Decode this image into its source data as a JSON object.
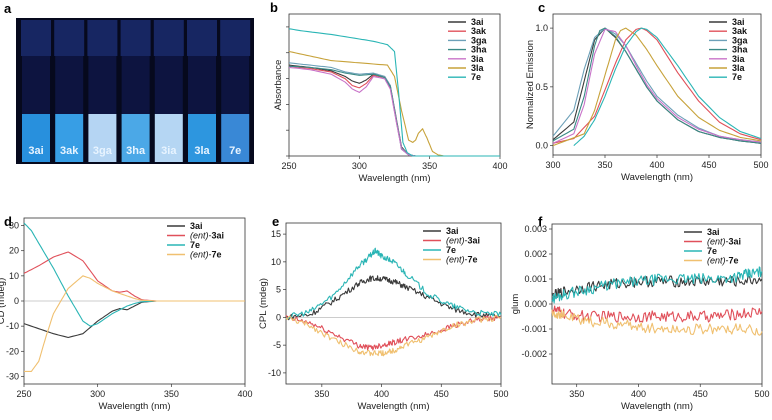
{
  "photo": {
    "panel": "a",
    "vials": [
      "3ai",
      "3ak",
      "3ga",
      "3ha",
      "3ia",
      "3la",
      "7e"
    ]
  },
  "chart_data": [
    {
      "panel": "b",
      "type": "line",
      "xlabel": "Wavelength (nm)",
      "ylabel": "Absorbance",
      "xlim": [
        250,
        400
      ],
      "ylim": [
        0,
        1.25
      ],
      "xticks": [
        "250",
        "300",
        "350",
        "400"
      ],
      "series": [
        {
          "name": "3ai",
          "color": "#3a3a3a",
          "x": [
            250,
            265,
            280,
            290,
            295,
            300,
            305,
            310,
            318,
            322,
            326,
            330,
            335,
            340,
            350,
            360,
            400
          ],
          "y": [
            0.8,
            0.78,
            0.75,
            0.7,
            0.66,
            0.64,
            0.67,
            0.72,
            0.7,
            0.62,
            0.35,
            0.08,
            0.01,
            0.0,
            0.0,
            0.0,
            0.0
          ]
        },
        {
          "name": "3ak",
          "color": "#e0505a",
          "x": [
            250,
            265,
            280,
            290,
            295,
            300,
            305,
            310,
            318,
            322,
            326,
            330,
            335,
            340,
            350,
            360,
            400
          ],
          "y": [
            0.79,
            0.77,
            0.74,
            0.68,
            0.62,
            0.6,
            0.64,
            0.71,
            0.69,
            0.6,
            0.33,
            0.07,
            0.01,
            0.0,
            0.0,
            0.0,
            0.0
          ]
        },
        {
          "name": "3ga",
          "color": "#6ca0b8",
          "x": [
            250,
            265,
            280,
            290,
            300,
            310,
            318,
            322,
            326,
            330,
            335,
            340,
            350,
            360,
            400
          ],
          "y": [
            0.82,
            0.8,
            0.78,
            0.74,
            0.72,
            0.73,
            0.7,
            0.62,
            0.34,
            0.07,
            0.01,
            0.0,
            0.0,
            0.0,
            0.0
          ]
        },
        {
          "name": "3ha",
          "color": "#3a8a86",
          "x": [
            250,
            265,
            280,
            290,
            300,
            310,
            318,
            322,
            326,
            330,
            335,
            340,
            350,
            360,
            400
          ],
          "y": [
            0.79,
            0.78,
            0.76,
            0.73,
            0.71,
            0.72,
            0.69,
            0.61,
            0.33,
            0.06,
            0.01,
            0.0,
            0.0,
            0.0,
            0.0
          ]
        },
        {
          "name": "3ia",
          "color": "#c873c8",
          "x": [
            250,
            265,
            280,
            290,
            295,
            300,
            305,
            310,
            318,
            322,
            326,
            330,
            335,
            340,
            350,
            360,
            400
          ],
          "y": [
            0.78,
            0.76,
            0.72,
            0.65,
            0.59,
            0.56,
            0.61,
            0.7,
            0.68,
            0.59,
            0.32,
            0.06,
            0.01,
            0.0,
            0.0,
            0.0,
            0.0
          ]
        },
        {
          "name": "3la",
          "color": "#c7a23a",
          "x": [
            250,
            265,
            280,
            300,
            320,
            325,
            330,
            335,
            338,
            340,
            342,
            345,
            348,
            352,
            356,
            360,
            400
          ],
          "y": [
            0.92,
            0.88,
            0.84,
            0.82,
            0.8,
            0.7,
            0.4,
            0.14,
            0.12,
            0.14,
            0.2,
            0.24,
            0.16,
            0.04,
            0.01,
            0.0,
            0.0
          ]
        },
        {
          "name": "7e",
          "color": "#2ab5b5",
          "x": [
            250,
            260,
            280,
            300,
            310,
            320,
            325,
            328,
            331,
            334,
            338,
            345,
            360,
            400
          ],
          "y": [
            1.12,
            1.1,
            1.07,
            1.03,
            1.01,
            0.98,
            0.92,
            0.55,
            0.12,
            0.03,
            0.0,
            0.0,
            0.0,
            0.0
          ]
        }
      ]
    },
    {
      "panel": "c",
      "type": "line",
      "xlabel": "Wavelength (nm)",
      "ylabel": "Normalized Emission",
      "xlim": [
        300,
        500
      ],
      "ylim": [
        -0.08,
        1.12
      ],
      "xticks": [
        "300",
        "350",
        "400",
        "450",
        "500"
      ],
      "yticks": [
        "0.0",
        "0.5",
        "1.0"
      ],
      "ytick_values": [
        0,
        0.5,
        1.0
      ],
      "series": [
        {
          "name": "3ai",
          "color": "#3a3a3a",
          "x": [
            300,
            320,
            330,
            340,
            350,
            360,
            370,
            380,
            390,
            400,
            420,
            440,
            460,
            480,
            500
          ],
          "y": [
            0.05,
            0.2,
            0.55,
            0.9,
            1.0,
            0.92,
            0.8,
            0.65,
            0.5,
            0.38,
            0.22,
            0.12,
            0.07,
            0.04,
            0.02
          ]
        },
        {
          "name": "3ak",
          "color": "#e0505a",
          "x": [
            300,
            320,
            340,
            360,
            370,
            380,
            385,
            390,
            400,
            420,
            440,
            460,
            480,
            500
          ],
          "y": [
            0.02,
            0.06,
            0.25,
            0.7,
            0.9,
            0.99,
            1.0,
            0.98,
            0.9,
            0.62,
            0.38,
            0.2,
            0.1,
            0.05
          ]
        },
        {
          "name": "3ga",
          "color": "#6ca0b8",
          "x": [
            300,
            320,
            330,
            340,
            350,
            360,
            370,
            380,
            390,
            400,
            420,
            440,
            460,
            480,
            500
          ],
          "y": [
            0.08,
            0.3,
            0.65,
            0.92,
            1.0,
            0.95,
            0.85,
            0.7,
            0.55,
            0.42,
            0.26,
            0.15,
            0.08,
            0.05,
            0.03
          ]
        },
        {
          "name": "3ha",
          "color": "#3a8a86",
          "x": [
            300,
            320,
            330,
            340,
            345,
            350,
            360,
            370,
            380,
            390,
            400,
            420,
            440,
            460,
            480,
            500
          ],
          "y": [
            0.04,
            0.14,
            0.42,
            0.85,
            0.98,
            1.0,
            0.93,
            0.8,
            0.65,
            0.5,
            0.38,
            0.22,
            0.12,
            0.07,
            0.04,
            0.02
          ]
        },
        {
          "name": "3ia",
          "color": "#c873c8",
          "x": [
            300,
            320,
            330,
            340,
            350,
            360,
            370,
            380,
            390,
            400,
            420,
            440,
            460,
            480,
            500
          ],
          "y": [
            0.02,
            0.1,
            0.35,
            0.78,
            0.99,
            0.97,
            0.85,
            0.68,
            0.52,
            0.4,
            0.24,
            0.14,
            0.08,
            0.05,
            0.03
          ]
        },
        {
          "name": "3la",
          "color": "#c7a23a",
          "x": [
            300,
            330,
            340,
            350,
            360,
            365,
            370,
            380,
            390,
            400,
            420,
            440,
            460,
            480,
            500
          ],
          "y": [
            0.0,
            0.1,
            0.3,
            0.6,
            0.9,
            0.98,
            1.0,
            0.94,
            0.82,
            0.68,
            0.42,
            0.24,
            0.13,
            0.07,
            0.04
          ]
        },
        {
          "name": "7e",
          "color": "#2ab5b5",
          "x": [
            320,
            330,
            340,
            350,
            360,
            370,
            380,
            385,
            390,
            400,
            420,
            440,
            460,
            480,
            500
          ],
          "y": [
            0.0,
            0.08,
            0.22,
            0.42,
            0.65,
            0.85,
            0.97,
            1.0,
            0.99,
            0.92,
            0.68,
            0.42,
            0.24,
            0.12,
            0.06
          ]
        }
      ]
    },
    {
      "panel": "d",
      "type": "line",
      "xlabel": "Wavelength (nm)",
      "ylabel": "CD (mdeg)",
      "xlim": [
        250,
        400
      ],
      "ylim": [
        -33,
        33
      ],
      "xticks": [
        "250",
        "300",
        "350",
        "400"
      ],
      "yticks": [
        "-30",
        "-20",
        "-10",
        "0",
        "10",
        "20",
        "30"
      ],
      "ytick_values": [
        -30,
        -20,
        -10,
        0,
        10,
        20,
        30
      ],
      "series": [
        {
          "name": "3ai",
          "color": "#3a3a3a",
          "x": [
            250,
            260,
            270,
            280,
            290,
            300,
            310,
            315,
            320,
            325,
            330,
            340,
            350,
            400
          ],
          "y": [
            -9,
            -11,
            -13,
            -14.5,
            -13,
            -8,
            -4,
            -3,
            -3.5,
            -2,
            -0.5,
            0,
            0,
            0
          ]
        },
        {
          "name": "(ent)-3ai",
          "color": "#e0505a",
          "x": [
            250,
            260,
            270,
            280,
            290,
            300,
            310,
            315,
            320,
            325,
            330,
            340,
            350,
            400
          ],
          "y": [
            11,
            14,
            17.5,
            19.5,
            16,
            8,
            4,
            3.5,
            4,
            2,
            0.5,
            0,
            0,
            0
          ]
        },
        {
          "name": "7e",
          "color": "#2ab5b5",
          "x": [
            250,
            255,
            260,
            270,
            280,
            290,
            295,
            300,
            310,
            320,
            325,
            330,
            340,
            350,
            400
          ],
          "y": [
            31,
            28,
            23,
            13,
            2,
            -8,
            -10,
            -9,
            -5,
            -2,
            -1,
            -0.3,
            0,
            0,
            0
          ]
        },
        {
          "name": "(ent)-7e",
          "color": "#f0c070",
          "x": [
            250,
            255,
            260,
            265,
            270,
            280,
            290,
            295,
            300,
            310,
            320,
            325,
            330,
            340,
            350,
            400
          ],
          "y": [
            -28,
            -28,
            -24,
            -14,
            -5,
            5,
            10,
            9,
            7,
            4,
            2,
            1,
            0.3,
            0,
            0,
            0
          ]
        }
      ]
    },
    {
      "panel": "e",
      "type": "line",
      "xlabel": "Wavelength (nm)",
      "ylabel": "CPL (mdeg)",
      "xlim": [
        320,
        500
      ],
      "ylim": [
        -12,
        17
      ],
      "xticks": [
        "350",
        "400",
        "450",
        "500"
      ],
      "yticks": [
        "-10",
        "-5",
        "0",
        "5",
        "10",
        "15"
      ],
      "ytick_values": [
        -10,
        -5,
        0,
        5,
        10,
        15
      ],
      "series": [
        {
          "name": "3ai",
          "color": "#3a3a3a",
          "x": [
            320,
            340,
            360,
            380,
            390,
            400,
            410,
            420,
            440,
            460,
            480,
            500
          ],
          "y": [
            0,
            0.5,
            3,
            6,
            7,
            7,
            6.5,
            5.5,
            3.5,
            1.5,
            0.5,
            0
          ]
        },
        {
          "name": "(ent)-3ai",
          "color": "#e0505a",
          "x": [
            320,
            340,
            360,
            380,
            390,
            400,
            410,
            420,
            440,
            460,
            480,
            500
          ],
          "y": [
            0,
            -1,
            -3,
            -5,
            -5.5,
            -5,
            -4.5,
            -4,
            -3,
            -1.5,
            -0.5,
            0
          ]
        },
        {
          "name": "7e",
          "color": "#2ab5b5",
          "x": [
            320,
            340,
            360,
            380,
            390,
            395,
            400,
            410,
            420,
            440,
            460,
            480,
            500
          ],
          "y": [
            0,
            1,
            4,
            9,
            11,
            12,
            11,
            10,
            8,
            4,
            2,
            0.8,
            0.5
          ]
        },
        {
          "name": "(ent)-7e",
          "color": "#f0c070",
          "x": [
            320,
            340,
            360,
            380,
            390,
            400,
            410,
            420,
            440,
            460,
            480,
            500
          ],
          "y": [
            0,
            -1.5,
            -4,
            -6,
            -6.5,
            -6.5,
            -6,
            -5,
            -3.5,
            -1.5,
            -0.5,
            0
          ]
        }
      ]
    },
    {
      "panel": "f",
      "type": "line",
      "xlabel": "Wavelength (nm)",
      "ylabel": "glum",
      "xlim": [
        330,
        500
      ],
      "ylim": [
        -0.0032,
        0.0032
      ],
      "xticks": [
        "350",
        "400",
        "450",
        "500"
      ],
      "yticks": [
        "0.003",
        "0.002",
        "0.001",
        "0.000",
        "-0.001",
        "-0.002"
      ],
      "ytick_values": [
        0.003,
        0.002,
        0.001,
        0,
        -0.001,
        -0.002
      ],
      "series": [
        {
          "name": "3ai",
          "color": "#3a3a3a",
          "x": [
            330,
            340,
            360,
            380,
            400,
            420,
            440,
            460,
            480,
            500
          ],
          "y": [
            0.0003,
            0.0005,
            0.0007,
            0.0008,
            0.0009,
            0.0009,
            0.0009,
            0.0009,
            0.0009,
            0.001
          ]
        },
        {
          "name": "(ent)-3ai",
          "color": "#e0505a",
          "x": [
            330,
            340,
            360,
            380,
            400,
            420,
            440,
            460,
            480,
            500
          ],
          "y": [
            -0.0002,
            -0.0004,
            -0.0005,
            -0.0005,
            -0.0005,
            -0.0005,
            -0.0005,
            -0.0005,
            -0.0004,
            -0.0003
          ]
        },
        {
          "name": "7e",
          "color": "#2ab5b5",
          "x": [
            330,
            340,
            360,
            380,
            400,
            420,
            440,
            460,
            480,
            490,
            500
          ],
          "y": [
            0.0002,
            0.0004,
            0.0006,
            0.0008,
            0.0009,
            0.001,
            0.001,
            0.001,
            0.0011,
            0.0012,
            0.0013
          ]
        },
        {
          "name": "(ent)-7e",
          "color": "#f0c070",
          "x": [
            330,
            340,
            360,
            380,
            400,
            420,
            440,
            460,
            480,
            500
          ],
          "y": [
            -0.0003,
            -0.0005,
            -0.0007,
            -0.0008,
            -0.0009,
            -0.001,
            -0.001,
            -0.001,
            -0.001,
            -0.0011
          ]
        }
      ]
    }
  ]
}
